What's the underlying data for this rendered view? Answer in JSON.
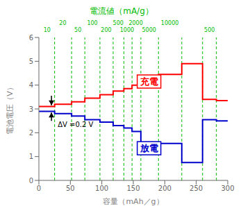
{
  "chart_data": {
    "type": "line",
    "title": "電流値（mA/g）",
    "title_color": "#00bb00",
    "xlabel": "容量（mAh／g）",
    "ylabel": "電池電圧（V）",
    "xlim": [
      0,
      300
    ],
    "ylim": [
      0,
      6
    ],
    "xticks": [
      0,
      50,
      100,
      150,
      200,
      250,
      300
    ],
    "yticks": [
      0,
      1,
      2,
      3,
      4,
      5,
      6
    ],
    "grid": false,
    "x": [
      0,
      25,
      25,
      52,
      52,
      73,
      73,
      97,
      97,
      118,
      118,
      135,
      135,
      148,
      148,
      162,
      162,
      190,
      190,
      227,
      227,
      260,
      260,
      282,
      282,
      300
    ],
    "series": [
      {
        "color": "#ff0000",
        "values": [
          3.1,
          3.1,
          3.2,
          3.2,
          3.3,
          3.3,
          3.45,
          3.45,
          3.6,
          3.6,
          3.75,
          3.75,
          3.85,
          3.85,
          4.0,
          4.0,
          4.35,
          4.35,
          4.45,
          4.45,
          4.9,
          4.9,
          3.4,
          3.4,
          3.35,
          3.35
        ]
      },
      {
        "color": "#0000cc",
        "values": [
          2.9,
          2.9,
          2.8,
          2.8,
          2.7,
          2.7,
          2.55,
          2.55,
          2.45,
          2.45,
          2.3,
          2.3,
          2.2,
          2.2,
          2.05,
          2.05,
          1.6,
          1.6,
          1.55,
          1.55,
          0.75,
          0.75,
          2.55,
          2.55,
          2.5,
          2.5
        ]
      }
    ],
    "vlines": {
      "x": [
        25,
        52,
        73,
        97,
        118,
        135,
        148,
        162,
        190,
        227,
        260,
        282
      ],
      "color": "#00bb00",
      "line_style": "dashed"
    },
    "x2lim": [
      0,
      300
    ],
    "x2ticks": [
      {
        "value": 13,
        "label": "10"
      },
      {
        "value": 38,
        "label": "20"
      },
      {
        "value": 62,
        "label": "50"
      },
      {
        "value": 85,
        "label": "100"
      },
      {
        "value": 107,
        "label": "200"
      },
      {
        "value": 126,
        "label": "500"
      },
      {
        "value": 140,
        "label": "1000"
      },
      {
        "value": 154,
        "label": "2000"
      },
      {
        "value": 175,
        "label": "5000"
      },
      {
        "value": 208,
        "label": "10000"
      },
      {
        "value": 271,
        "label": "500"
      }
    ],
    "x2_color": "#00bb00",
    "annotations": [
      {
        "text": "充電",
        "x": 175,
        "y": 4.15,
        "color": "#ff0000",
        "boxed": true
      },
      {
        "text": "放電",
        "x": 175,
        "y": 1.35,
        "color": "#0000cc",
        "boxed": true
      },
      {
        "text": "ΔV =0.2 V",
        "x": 30,
        "y": 2.35,
        "color": "#000000"
      }
    ],
    "arrows": [
      {
        "x": 20,
        "from": 3.55,
        "to": 3.15,
        "color": "#000000"
      },
      {
        "x": 20,
        "from": 2.5,
        "to": 2.85,
        "color": "#000000"
      }
    ]
  }
}
